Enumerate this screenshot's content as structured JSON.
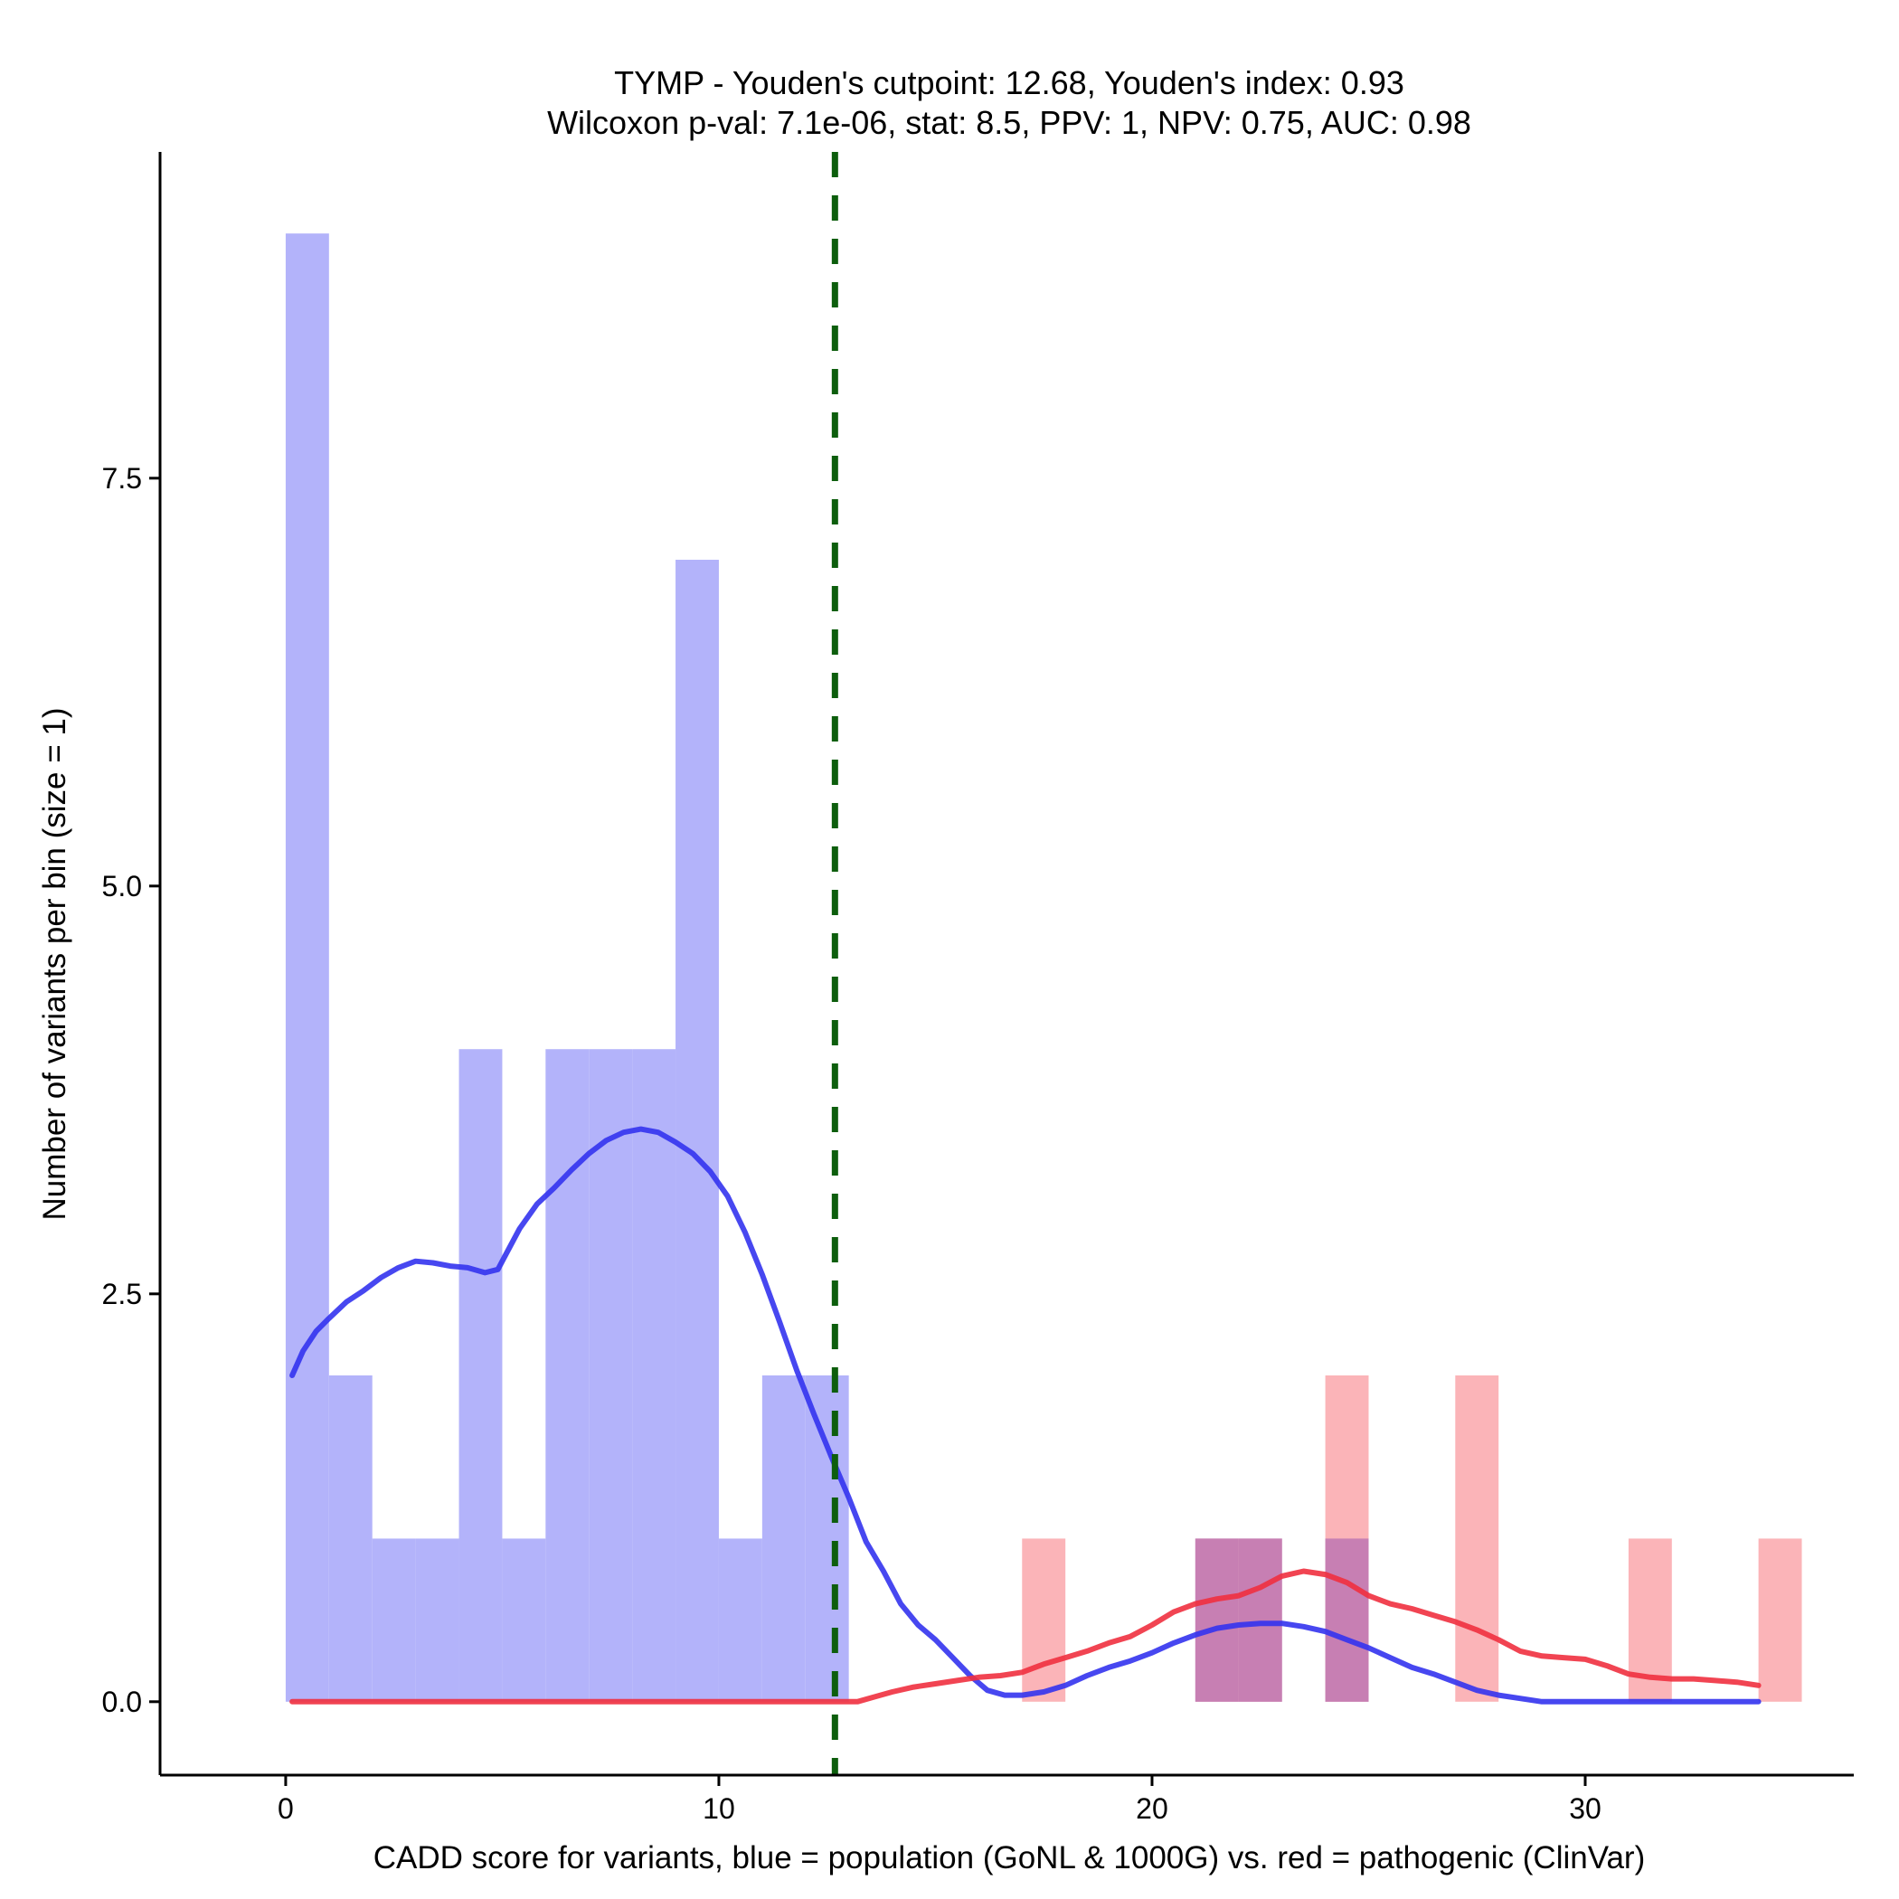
{
  "chart_data": {
    "type": "bar",
    "title_line1": "TYMP - Youden's cutpoint: 12.68, Youden's index: 0.93",
    "title_line2": "Wilcoxon p-val: 7.1e-06, stat: 8.5, PPV: 1, NPV: 0.75, AUC: 0.98",
    "xlabel": "CADD score for variants, blue = population (GoNL & 1000G) vs. red = pathogenic (ClinVar)",
    "ylabel": "Number of variants per bin (size = 1)",
    "xlim": [
      -2.9,
      36.2
    ],
    "ylim": [
      -0.45,
      9.5
    ],
    "x_ticks": [
      0,
      10,
      20,
      30
    ],
    "x_tick_labels": [
      "0",
      "10",
      "20",
      "30"
    ],
    "y_ticks": [
      0,
      2.5,
      5,
      7.5
    ],
    "y_tick_labels": [
      "0.0",
      "2.5",
      "5.0",
      "7.5"
    ],
    "bin_width": 1,
    "cutpoint": 12.68,
    "colors": {
      "population_bar": "#b3b3fa",
      "pathogenic_bar": "#fbb4b8",
      "overlap_bar": "#c77fb3",
      "population_line": "#3333ee",
      "pathogenic_line": "#f0303f",
      "cutpoint_line": "#0d5e0d"
    },
    "series": [
      {
        "name": "population",
        "bins": [
          {
            "x0": 0,
            "value": 9
          },
          {
            "x0": 1,
            "value": 2
          },
          {
            "x0": 2,
            "value": 1
          },
          {
            "x0": 3,
            "value": 1
          },
          {
            "x0": 4,
            "value": 4
          },
          {
            "x0": 5,
            "value": 1
          },
          {
            "x0": 6,
            "value": 4
          },
          {
            "x0": 7,
            "value": 4
          },
          {
            "x0": 8,
            "value": 4
          },
          {
            "x0": 9,
            "value": 7
          },
          {
            "x0": 10,
            "value": 1
          },
          {
            "x0": 11,
            "value": 2
          },
          {
            "x0": 12,
            "value": 2
          },
          {
            "x0": 21,
            "value": 1
          },
          {
            "x0": 22,
            "value": 1
          },
          {
            "x0": 24,
            "value": 1
          }
        ],
        "density": {
          "x": [
            0.15,
            0.4,
            0.7,
            1.0,
            1.4,
            1.8,
            2.2,
            2.6,
            3.0,
            3.4,
            3.8,
            4.2,
            4.6,
            4.9,
            5.1,
            5.4,
            5.8,
            6.2,
            6.6,
            7.0,
            7.4,
            7.8,
            8.2,
            8.6,
            9.0,
            9.4,
            9.8,
            10.2,
            10.6,
            11.0,
            11.4,
            11.8,
            12.2,
            12.6,
            13.0,
            13.4,
            13.8,
            14.2,
            14.6,
            15.0,
            15.4,
            15.8,
            16.2,
            16.6,
            17.0,
            17.5,
            18.0,
            18.5,
            19.0,
            19.5,
            20.0,
            20.5,
            21.0,
            21.5,
            22.0,
            22.5,
            23.0,
            23.5,
            24.0,
            24.5,
            25.0,
            25.5,
            26.0,
            26.5,
            27.0,
            27.5,
            28.0,
            28.5,
            29.0,
            30.0,
            31.0,
            32.0,
            33.0,
            34.0
          ],
          "y": [
            2.0,
            2.15,
            2.27,
            2.35,
            2.45,
            2.52,
            2.6,
            2.66,
            2.7,
            2.69,
            2.67,
            2.66,
            2.63,
            2.65,
            2.75,
            2.9,
            3.05,
            3.15,
            3.26,
            3.36,
            3.44,
            3.49,
            3.51,
            3.49,
            3.43,
            3.36,
            3.25,
            3.1,
            2.88,
            2.62,
            2.33,
            2.03,
            1.76,
            1.5,
            1.25,
            0.98,
            0.8,
            0.6,
            0.47,
            0.38,
            0.27,
            0.16,
            0.07,
            0.04,
            0.04,
            0.06,
            0.1,
            0.16,
            0.21,
            0.25,
            0.3,
            0.36,
            0.41,
            0.45,
            0.47,
            0.48,
            0.48,
            0.46,
            0.43,
            0.38,
            0.33,
            0.27,
            0.21,
            0.17,
            0.12,
            0.07,
            0.04,
            0.02,
            0.0,
            0.0,
            0.0,
            0.0,
            0.0,
            0.0
          ]
        }
      },
      {
        "name": "pathogenic",
        "bins": [
          {
            "x0": 17,
            "value": 1
          },
          {
            "x0": 21,
            "value": 1
          },
          {
            "x0": 22,
            "value": 1
          },
          {
            "x0": 24,
            "value": 2
          },
          {
            "x0": 27,
            "value": 2
          },
          {
            "x0": 31,
            "value": 1
          },
          {
            "x0": 34,
            "value": 1
          }
        ],
        "density": {
          "x": [
            0.15,
            2,
            4,
            6,
            8,
            10,
            12,
            12.8,
            13.2,
            13.6,
            14.0,
            14.5,
            15.0,
            15.5,
            16.0,
            16.5,
            17.0,
            17.5,
            18.0,
            18.5,
            19.0,
            19.5,
            20.0,
            20.5,
            21.0,
            21.5,
            22.0,
            22.5,
            23.0,
            23.5,
            24.0,
            24.5,
            25.0,
            25.5,
            26.0,
            26.5,
            27.0,
            27.5,
            28.0,
            28.5,
            29.0,
            29.5,
            30.0,
            30.5,
            31.0,
            31.5,
            32.0,
            32.5,
            33.0,
            33.5,
            34.0
          ],
          "y": [
            0.0,
            0.0,
            0.0,
            0.0,
            0.0,
            0.0,
            0.0,
            0.0,
            0.0,
            0.03,
            0.06,
            0.09,
            0.11,
            0.13,
            0.15,
            0.16,
            0.18,
            0.23,
            0.27,
            0.31,
            0.36,
            0.4,
            0.47,
            0.55,
            0.6,
            0.63,
            0.65,
            0.7,
            0.77,
            0.8,
            0.78,
            0.73,
            0.65,
            0.6,
            0.57,
            0.53,
            0.49,
            0.44,
            0.38,
            0.31,
            0.28,
            0.27,
            0.26,
            0.22,
            0.17,
            0.15,
            0.14,
            0.14,
            0.13,
            0.12,
            0.1
          ]
        }
      }
    ]
  }
}
